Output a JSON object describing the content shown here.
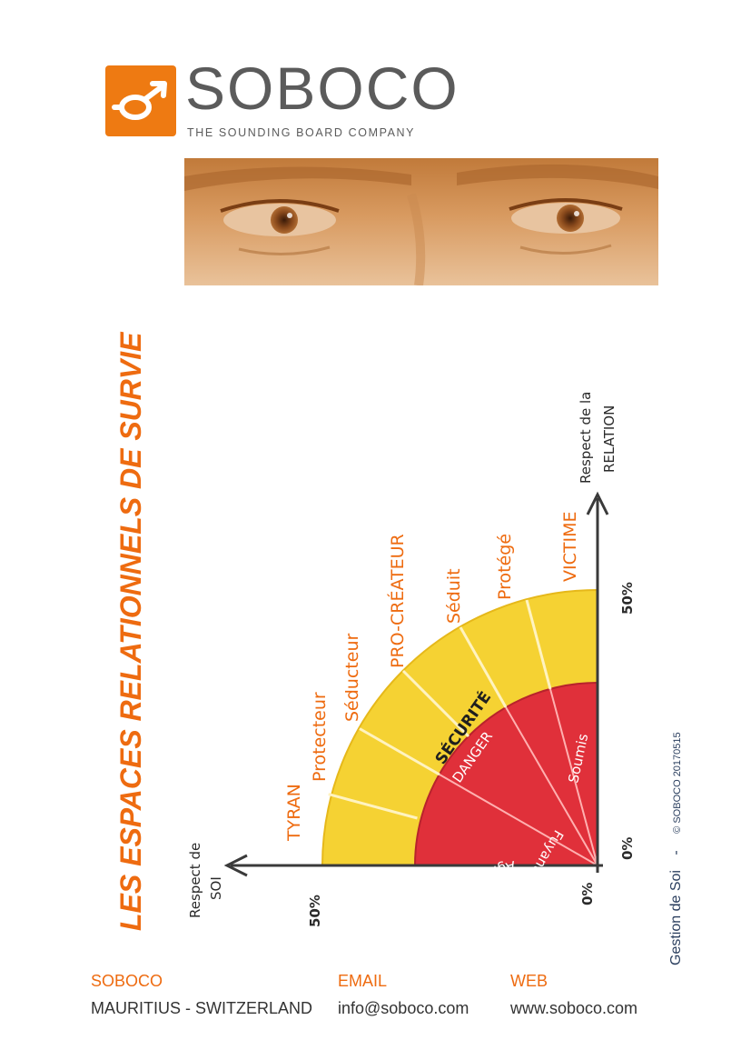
{
  "logo": {
    "name": "SOBOCO",
    "tagline": "THE SOUNDING BOARD COMPANY",
    "accent_color": "#ee7a12",
    "icon": "gender-symbol-icon"
  },
  "photo": {
    "tint": "#c98a4e"
  },
  "title": "LES ESPACES RELATIONNELS DE SURVIE",
  "diagram": {
    "y_axis_label_line1": "Respect de la",
    "y_axis_label_line2": "RELATION",
    "x_axis_label_line1": "Respect de",
    "x_axis_label_line2": "SOI",
    "x_tick_50": "50%",
    "x_tick_0": "0%",
    "y_tick_50": "50%",
    "y_tick_0": "0%",
    "outer_zone_color": "#f5d233",
    "inner_zone_color": "#e0303a",
    "outer_labels": [
      "TYRAN",
      "Protecteur",
      "Séducteur",
      "PRO-CRÉATEUR",
      "Séduit",
      "Protégé",
      "VICTIME"
    ],
    "security_label": "SÉCURITÉ",
    "danger_label": "DANGER",
    "inner_labels": [
      "Agresseur",
      "Fuyant",
      "Soumis"
    ]
  },
  "side_credit": {
    "text": "Gestion de Soi",
    "separator": "-",
    "copyright": "© SOBOCO 20170515"
  },
  "footer": {
    "company_heading": "SOBOCO",
    "company_value": "MAURITIUS - SWITZERLAND",
    "email_heading": "EMAIL",
    "email_value": "info@soboco.com",
    "web_heading": "WEB",
    "web_value": "www.soboco.com"
  }
}
